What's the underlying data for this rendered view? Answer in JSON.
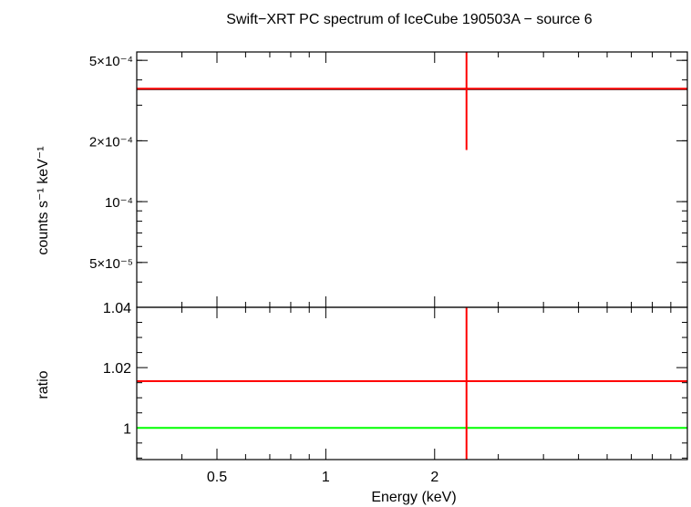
{
  "chart_data": [
    {
      "type": "line",
      "panel": "spectrum",
      "title": "Swift−XRT PC spectrum of IceCube 190503A − source 6",
      "ylabel": "counts s⁻¹ keV⁻¹",
      "xlabel": "",
      "xscale": "log",
      "yscale": "log",
      "xlim": [
        0.3,
        10
      ],
      "ylim": [
        3e-05,
        0.00055
      ],
      "yticks": [
        {
          "value": 0.0005,
          "label": "5×10⁻⁴"
        },
        {
          "value": 0.0002,
          "label": "2×10⁻⁴"
        },
        {
          "value": 0.0001,
          "label": "10⁻⁴"
        },
        {
          "value": 5e-05,
          "label": "5×10⁻⁵"
        }
      ],
      "series": [
        {
          "color": "#000000",
          "style": "model line",
          "x": [
            0.3,
            10
          ],
          "y": [
            0.00036,
            0.00036
          ]
        },
        {
          "color": "#ff0000",
          "style": "data",
          "x": [
            0.3,
            10
          ],
          "y": [
            0.000362,
            0.000362
          ],
          "error_x": 2.45,
          "error_y": [
            0.00018,
            0.00055
          ]
        }
      ]
    },
    {
      "type": "line",
      "panel": "ratio",
      "ylabel": "ratio",
      "xlabel": "Energy (keV)",
      "xscale": "log",
      "xlim": [
        0.3,
        10
      ],
      "ylim": [
        0.9895,
        1.04
      ],
      "xticks": [
        {
          "value": 0.5,
          "label": "0.5"
        },
        {
          "value": 1,
          "label": "1"
        },
        {
          "value": 2,
          "label": "2"
        }
      ],
      "yticks": [
        {
          "value": 1.04,
          "label": "1.04"
        },
        {
          "value": 1.02,
          "label": "1.02"
        },
        {
          "value": 1,
          "label": "1"
        }
      ],
      "series": [
        {
          "color": "#00ff00",
          "style": "reference line",
          "x": [
            0.3,
            10
          ],
          "y": [
            1,
            1
          ]
        },
        {
          "color": "#ff0000",
          "style": "data",
          "x": [
            0.3,
            10
          ],
          "y": [
            1.0155,
            1.0155
          ],
          "error_x": 2.45,
          "error_y": [
            0.9895,
            1.04
          ]
        }
      ]
    }
  ]
}
